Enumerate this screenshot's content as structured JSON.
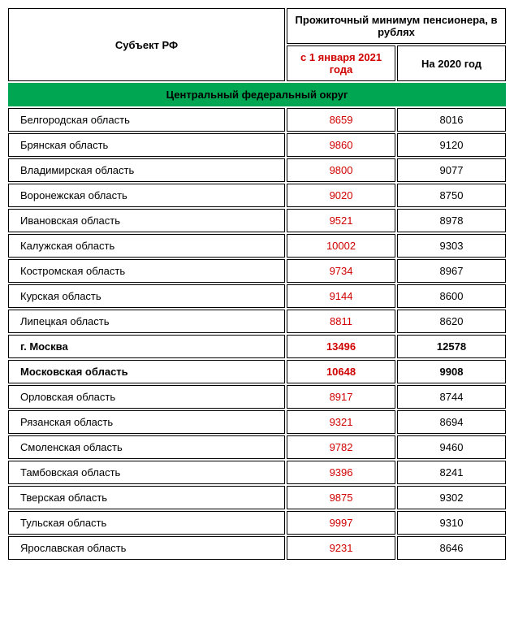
{
  "header": {
    "subject_label": "Субъект РФ",
    "group_label": "Прожиточный минимум пенсионера, в рублях",
    "col_2021": "с 1 января 2021 года",
    "col_2020": "На 2020 год"
  },
  "district_title": "Центральный федеральный округ",
  "colors": {
    "district_bg": "#00a651",
    "value_2021": "#d00000",
    "text": "#000000",
    "border": "#000000",
    "background": "#ffffff"
  },
  "rows": [
    {
      "region": "Белгородская область",
      "v2021": "8659",
      "v2020": "8016",
      "bold": false
    },
    {
      "region": "Брянская область",
      "v2021": "9860",
      "v2020": "9120",
      "bold": false
    },
    {
      "region": "Владимирская область",
      "v2021": "9800",
      "v2020": "9077",
      "bold": false
    },
    {
      "region": "Воронежская область",
      "v2021": "9020",
      "v2020": "8750",
      "bold": false
    },
    {
      "region": "Ивановская область",
      "v2021": "9521",
      "v2020": "8978",
      "bold": false
    },
    {
      "region": "Калужская область",
      "v2021": "10002",
      "v2020": "9303",
      "bold": false
    },
    {
      "region": "Костромская область",
      "v2021": "9734",
      "v2020": "8967",
      "bold": false
    },
    {
      "region": "Курская область",
      "v2021": "9144",
      "v2020": "8600",
      "bold": false
    },
    {
      "region": "Липецкая область",
      "v2021": "8811",
      "v2020": "8620",
      "bold": false
    },
    {
      "region": "г. Москва",
      "v2021": "13496",
      "v2020": "12578",
      "bold": true
    },
    {
      "region": "Московская область",
      "v2021": "10648",
      "v2020": "9908",
      "bold": true
    },
    {
      "region": "Орловская область",
      "v2021": "8917",
      "v2020": "8744",
      "bold": false
    },
    {
      "region": "Рязанская область",
      "v2021": "9321",
      "v2020": "8694",
      "bold": false
    },
    {
      "region": "Смоленская область",
      "v2021": "9782",
      "v2020": "9460",
      "bold": false
    },
    {
      "region": "Тамбовская область",
      "v2021": "9396",
      "v2020": "8241",
      "bold": false
    },
    {
      "region": "Тверская область",
      "v2021": "9875",
      "v2020": "9302",
      "bold": false
    },
    {
      "region": "Тульская область",
      "v2021": "9997",
      "v2020": "9310",
      "bold": false
    },
    {
      "region": "Ярославская область",
      "v2021": "9231",
      "v2020": "8646",
      "bold": false
    }
  ]
}
